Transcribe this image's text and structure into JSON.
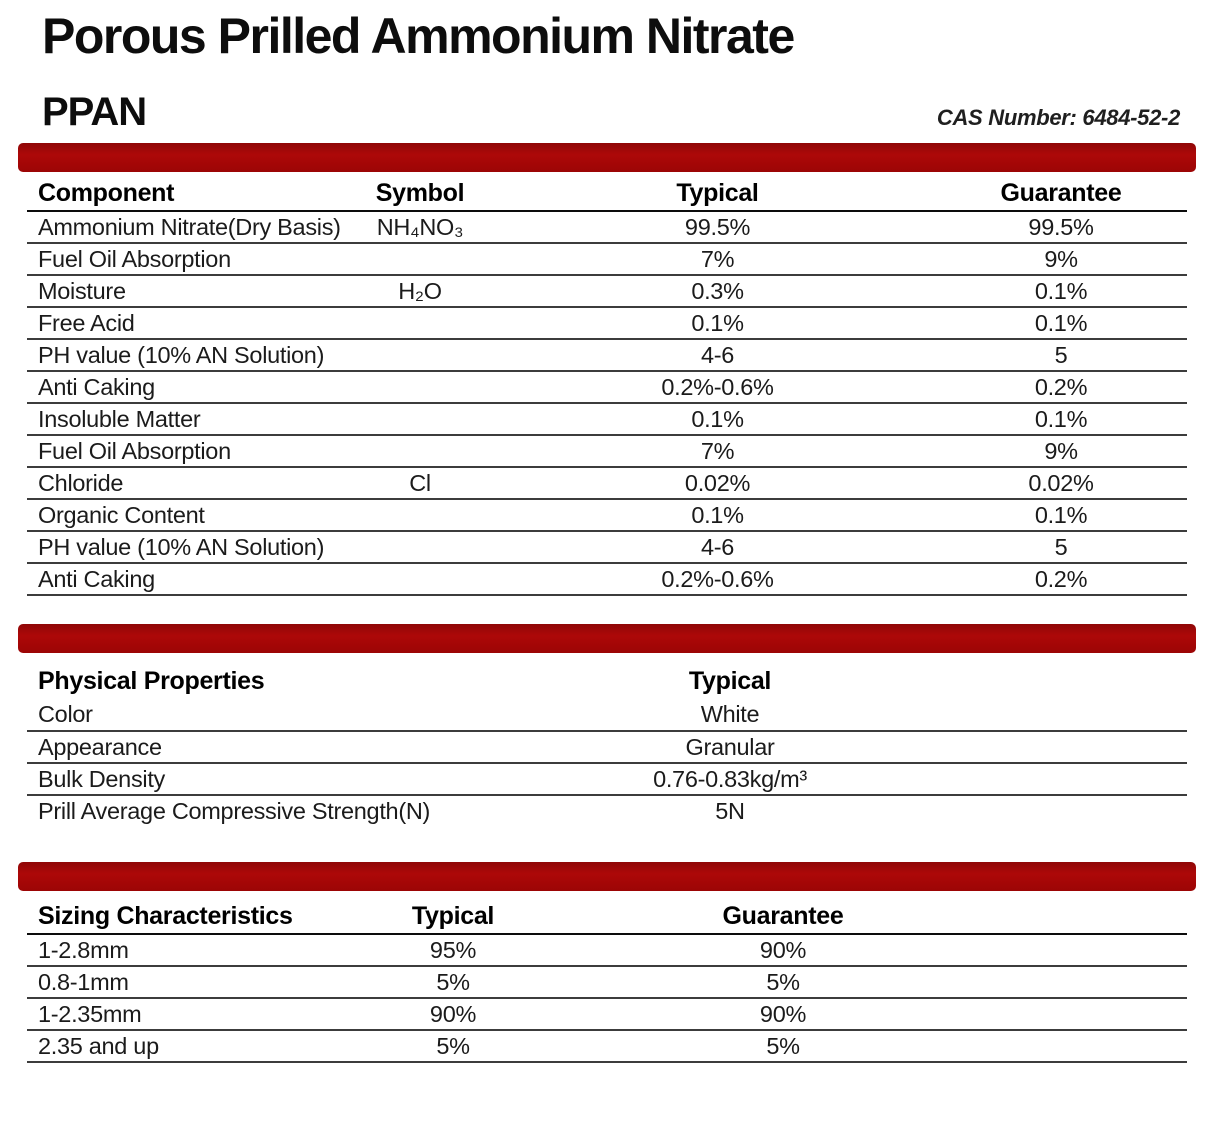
{
  "header": {
    "title": "Porous Prilled Ammonium Nitrate",
    "abbreviation": "PPAN",
    "cas_label": "CAS Number: 6484-52-2"
  },
  "colors": {
    "accent": "#a40808"
  },
  "component_table": {
    "headers": [
      "Component",
      "Symbol",
      "Typical",
      "Guarantee"
    ],
    "rows": [
      {
        "component": "Ammonium Nitrate(Dry Basis)",
        "symbol": "NH₄NO₃",
        "typical": "99.5%",
        "guarantee": "99.5%"
      },
      {
        "component": "Fuel Oil Absorption",
        "symbol": "",
        "typical": "7%",
        "guarantee": "9%"
      },
      {
        "component": "Moisture",
        "symbol": "H₂O",
        "typical": "0.3%",
        "guarantee": "0.1%"
      },
      {
        "component": "Free Acid",
        "symbol": "",
        "typical": "0.1%",
        "guarantee": "0.1%"
      },
      {
        "component": "PH value (10% AN Solution)",
        "symbol": "",
        "typical": "4-6",
        "guarantee": "5"
      },
      {
        "component": "Anti Caking",
        "symbol": "",
        "typical": "0.2%-0.6%",
        "guarantee": "0.2%"
      },
      {
        "component": "Insoluble Matter",
        "symbol": "",
        "typical": "0.1%",
        "guarantee": "0.1%"
      },
      {
        "component": "Fuel Oil Absorption",
        "symbol": "",
        "typical": "7%",
        "guarantee": "9%"
      },
      {
        "component": "Chloride",
        "symbol": "Cl",
        "typical": "0.02%",
        "guarantee": "0.02%"
      },
      {
        "component": "Organic Content",
        "symbol": "",
        "typical": "0.1%",
        "guarantee": "0.1%"
      },
      {
        "component": "PH value (10% AN Solution)",
        "symbol": "",
        "typical": "4-6",
        "guarantee": "5"
      },
      {
        "component": "Anti Caking",
        "symbol": "",
        "typical": "0.2%-0.6%",
        "guarantee": "0.2%"
      }
    ]
  },
  "physical_table": {
    "headers": [
      "Physical Properties",
      "Typical"
    ],
    "rows": [
      {
        "property": "Color",
        "typical": "White"
      },
      {
        "property": "Appearance",
        "typical": "Granular"
      },
      {
        "property": "Bulk Density",
        "typical": "0.76-0.83kg/m³"
      },
      {
        "property": "Prill Average Compressive Strength(N)",
        "typical": "5N"
      }
    ]
  },
  "sizing_table": {
    "headers": [
      "Sizing Characteristics",
      "Typical",
      "Guarantee"
    ],
    "rows": [
      {
        "size": "1-2.8mm",
        "typical": "95%",
        "guarantee": "90%"
      },
      {
        "size": "0.8-1mm",
        "typical": "5%",
        "guarantee": "5%"
      },
      {
        "size": "1-2.35mm",
        "typical": "90%",
        "guarantee": "90%"
      },
      {
        "size": "2.35 and up",
        "typical": "5%",
        "guarantee": "5%"
      }
    ]
  }
}
